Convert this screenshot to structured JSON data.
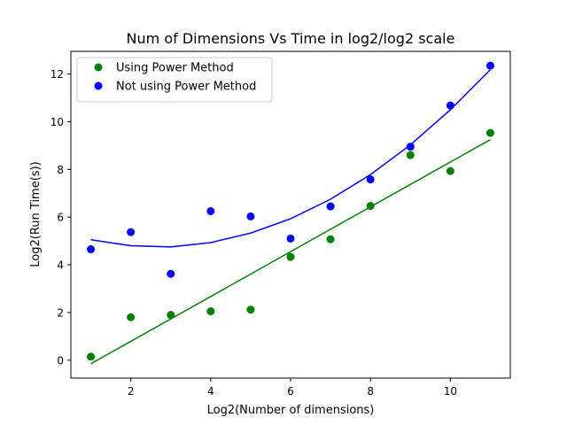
{
  "chart_data": {
    "type": "scatter",
    "title": "Num of Dimensions Vs Time in log2/log2 scale",
    "xlabel": "Log2(Number of dimensions)",
    "ylabel": "Log2(Run Time(s))",
    "xlim": [
      0.5,
      11.5
    ],
    "ylim": [
      -0.75,
      12.95
    ],
    "xticks": [
      2,
      4,
      6,
      8,
      10
    ],
    "yticks": [
      0,
      2,
      4,
      6,
      8,
      10,
      12
    ],
    "grid": false,
    "legend_position": "top-left",
    "series": [
      {
        "name": "Using Power Method",
        "color": "#008000",
        "points": [
          {
            "x": 1,
            "y": 0.15
          },
          {
            "x": 2,
            "y": 1.8
          },
          {
            "x": 3,
            "y": 1.9
          },
          {
            "x": 4,
            "y": 2.05
          },
          {
            "x": 5,
            "y": 2.12
          },
          {
            "x": 6,
            "y": 4.33
          },
          {
            "x": 7,
            "y": 5.07
          },
          {
            "x": 8,
            "y": 6.47
          },
          {
            "x": 9,
            "y": 8.6
          },
          {
            "x": 10,
            "y": 7.93
          },
          {
            "x": 11,
            "y": 9.53
          }
        ],
        "fit": [
          {
            "x": 1,
            "y": -0.15
          },
          {
            "x": 11,
            "y": 9.25
          }
        ]
      },
      {
        "name": "Not using Power Method",
        "color": "#0000ff",
        "points": [
          {
            "x": 1,
            "y": 4.65
          },
          {
            "x": 2,
            "y": 5.37
          },
          {
            "x": 3,
            "y": 3.62
          },
          {
            "x": 4,
            "y": 6.25
          },
          {
            "x": 5,
            "y": 6.03
          },
          {
            "x": 6,
            "y": 5.1
          },
          {
            "x": 7,
            "y": 6.45
          },
          {
            "x": 8,
            "y": 7.58
          },
          {
            "x": 9,
            "y": 8.95
          },
          {
            "x": 10,
            "y": 10.68
          },
          {
            "x": 11,
            "y": 12.35
          }
        ],
        "fit": [
          {
            "x": 1,
            "y": 5.05
          },
          {
            "x": 2,
            "y": 4.8
          },
          {
            "x": 3,
            "y": 4.75
          },
          {
            "x": 4,
            "y": 4.93
          },
          {
            "x": 5,
            "y": 5.33
          },
          {
            "x": 6,
            "y": 5.93
          },
          {
            "x": 7,
            "y": 6.75
          },
          {
            "x": 8,
            "y": 7.78
          },
          {
            "x": 9,
            "y": 9.03
          },
          {
            "x": 10,
            "y": 10.5
          },
          {
            "x": 11,
            "y": 12.18
          }
        ]
      }
    ]
  }
}
